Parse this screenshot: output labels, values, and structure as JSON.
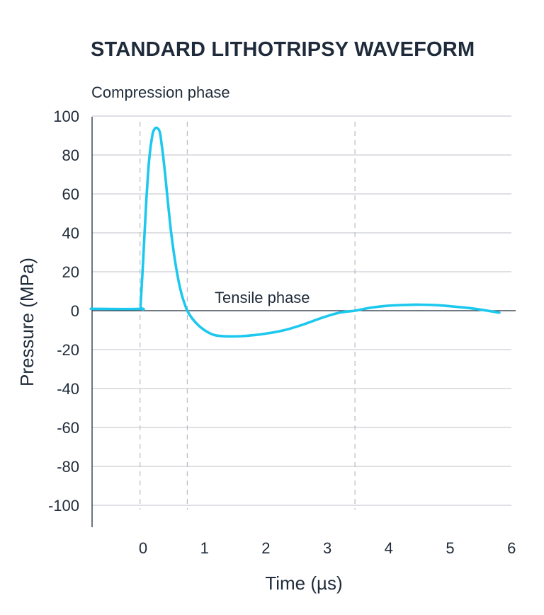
{
  "chart_data": {
    "type": "line",
    "title": "STANDARD LITHOTRIPSY WAVEFORM",
    "xlabel": "Time (µs)",
    "ylabel": "Pressure (MPa)",
    "xlim": [
      -0.85,
      6
    ],
    "ylim": [
      -110,
      100
    ],
    "xticks": [
      0,
      1,
      2,
      3,
      4,
      5,
      6
    ],
    "yticks": [
      100,
      80,
      60,
      40,
      20,
      0,
      -20,
      -40,
      -60,
      -80,
      -100
    ],
    "grid": true,
    "vertical_markers": [
      -0.05,
      0.72,
      3.45
    ],
    "annotations": [
      {
        "text": "Compression phase"
      },
      {
        "text": "Tensile phase"
      }
    ],
    "series": [
      {
        "name": "Pressure",
        "color": "#1cc8ee",
        "x": [
          -0.85,
          -0.05,
          -0.04,
          0.0,
          0.05,
          0.1,
          0.15,
          0.18,
          0.22,
          0.27,
          0.3,
          0.35,
          0.4,
          0.45,
          0.5,
          0.55,
          0.6,
          0.65,
          0.72,
          0.8,
          0.9,
          1.0,
          1.1,
          1.2,
          1.4,
          1.6,
          1.8,
          2.0,
          2.3,
          2.6,
          2.9,
          3.2,
          3.45,
          3.7,
          4.0,
          4.3,
          4.5,
          4.8,
          5.1,
          5.4,
          5.8
        ],
        "y": [
          1,
          1,
          3,
          25,
          55,
          78,
          90,
          93,
          94,
          92,
          86,
          73,
          57,
          42,
          30,
          20,
          12,
          6,
          0,
          -4,
          -7.5,
          -10,
          -11.8,
          -12.8,
          -13.2,
          -13.1,
          -12.6,
          -11.8,
          -10,
          -7.2,
          -3.8,
          -1,
          0,
          1.5,
          2.6,
          3,
          3.1,
          2.8,
          2,
          1,
          -1
        ]
      }
    ]
  }
}
